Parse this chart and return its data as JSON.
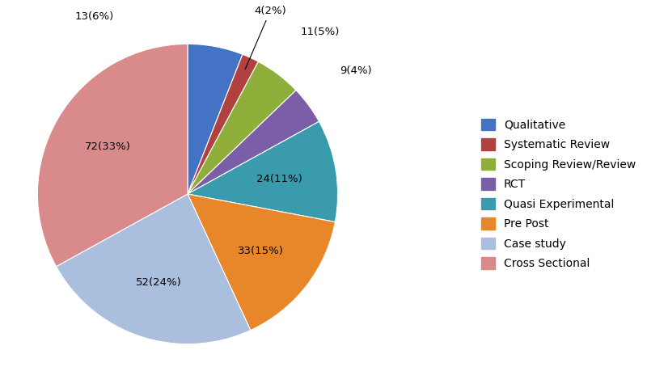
{
  "labels": [
    "Qualitative",
    "Systematic Review",
    "Scoping Review/Review",
    "RCT",
    "Quasi Experimental",
    "Pre Post",
    "Case study",
    "Cross Sectional"
  ],
  "values": [
    13,
    4,
    11,
    9,
    24,
    33,
    52,
    72
  ],
  "colors": [
    "#4472C4",
    "#B0413E",
    "#8FAF3A",
    "#7B5EA7",
    "#3A9BAD",
    "#E8872A",
    "#AABEDD",
    "#D98B8B"
  ],
  "label_texts": [
    "13(6%)",
    "4(2%)",
    "11(5%)",
    "9(4%)",
    "24(11%)",
    "33(15%)",
    "52(24%)",
    "72(33%)"
  ],
  "figsize": [
    8.0,
    4.8
  ],
  "dpi": 100,
  "background_color": "#ffffff"
}
